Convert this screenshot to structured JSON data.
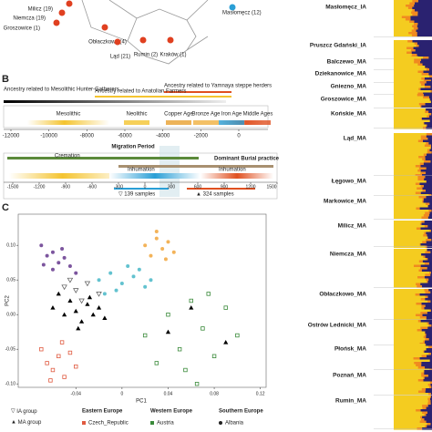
{
  "panel_a": {
    "sites": [
      {
        "label": "Milicz (19)"
      },
      {
        "label": "Niemcza (19)"
      },
      {
        "label": "Groszowice (1)"
      },
      {
        "label": "Obłaczkowo (4)"
      },
      {
        "label": "Ląd (21)"
      },
      {
        "label": "Rumin (2)"
      },
      {
        "label": "Kraków (1)"
      },
      {
        "label": "Masłomęcz (12)"
      }
    ]
  },
  "panel_b": {
    "label": "B",
    "ancestry": [
      "Ancestry related to Mesolithic Hunter-Gatherers",
      "Ancestry related to Anatolian Farmers",
      "Ancestry related to Yamnaya steppe herders"
    ],
    "periods": [
      "Mesolithic",
      "Neolithic",
      "Copper Age",
      "Bronze Age",
      "Iron Age",
      "Middle Ages"
    ],
    "axis_ticks": [
      -12000,
      -10000,
      -8000,
      -6000,
      -4000,
      -2000,
      0
    ],
    "migration": "Migration Period",
    "dominant": "Dominant Burial practice",
    "burial": [
      "Cremation",
      "Inhumation",
      "Inhumation"
    ],
    "zoom_ticks": [
      -1500,
      -1200,
      -900,
      -600,
      -300,
      0,
      300,
      600,
      900,
      1200,
      1500
    ],
    "samples": [
      "▽ 139 samples",
      "▲ 324 samples"
    ]
  },
  "panel_c": {
    "label": "C",
    "type": "scatter",
    "xlabel": "PC1",
    "ylabel": "PC2",
    "xlim": [
      -0.09,
      0.125
    ],
    "ylim": [
      -0.105,
      0.145
    ],
    "xticks": [
      -0.04,
      0,
      0.04,
      0.08,
      0.12
    ],
    "yticks": [
      {
        "value": 0.1,
        "label": "0.10"
      },
      0.05,
      {
        "value": 0,
        "label": "0.00"
      },
      -0.05,
      {
        "value": -0.1,
        "label": "-0.10"
      }
    ],
    "series": [
      {
        "color": "#5b2a86",
        "marker": "circle",
        "x": [
          -0.07,
          -0.065,
          -0.06,
          -0.055,
          -0.05,
          -0.045,
          -0.06,
          -0.04,
          -0.052,
          -0.068
        ],
        "y": [
          0.1,
          0.085,
          0.09,
          0.075,
          0.082,
          0.07,
          0.065,
          0.06,
          0.095,
          0.072
        ]
      },
      {
        "color": "#3bb3c3",
        "marker": "circle",
        "x": [
          -0.02,
          -0.01,
          0,
          0.01,
          0.02,
          -0.005,
          0.015,
          0.005,
          -0.015,
          0.025
        ],
        "y": [
          0.05,
          0.06,
          0.045,
          0.055,
          0.04,
          0.035,
          0.065,
          0.07,
          0.03,
          0.05
        ]
      },
      {
        "color": "#f0a030",
        "marker": "circle",
        "x": [
          0.02,
          0.03,
          0.035,
          0.04,
          0.025,
          0.045,
          0.03,
          0.038
        ],
        "y": [
          0.1,
          0.11,
          0.095,
          0.105,
          0.085,
          0.09,
          0.12,
          0.08
        ]
      },
      {
        "color": "#e05a40",
        "marker": "square",
        "x": [
          -0.07,
          -0.065,
          -0.06,
          -0.055,
          -0.05,
          -0.045,
          -0.04,
          -0.062,
          -0.052
        ],
        "y": [
          -0.05,
          -0.07,
          -0.08,
          -0.06,
          -0.09,
          -0.055,
          -0.075,
          -0.095,
          -0.04
        ]
      },
      {
        "color": "#3a8a3a",
        "marker": "square",
        "x": [
          0.02,
          0.04,
          0.05,
          0.06,
          0.07,
          0.08,
          0.09,
          0.1,
          0.055,
          0.075,
          0.03,
          0.065
        ],
        "y": [
          -0.03,
          0,
          -0.05,
          0.02,
          -0.02,
          -0.06,
          0.01,
          -0.03,
          -0.08,
          0.03,
          -0.07,
          -0.1
        ]
      },
      {
        "color": "#555555",
        "marker": "open-triangle",
        "x": [
          -0.05,
          -0.04,
          -0.03,
          -0.02,
          -0.045,
          -0.035
        ],
        "y": [
          0.04,
          0.035,
          0.045,
          0.03,
          0.05,
          0.02
        ]
      },
      {
        "color": "#000000",
        "marker": "triangle",
        "x": [
          -0.06,
          -0.05,
          -0.045,
          -0.04,
          -0.035,
          -0.03,
          -0.025,
          -0.02,
          -0.055,
          -0.038,
          -0.028,
          -0.015,
          0.04,
          0.06,
          0.09
        ],
        "y": [
          0.01,
          0,
          0.02,
          0.005,
          -0.01,
          0.015,
          0,
          0.01,
          0.03,
          -0.02,
          0.025,
          -0.005,
          -0.025,
          0.01,
          -0.04
        ]
      }
    ],
    "legend": {
      "groups": [
        "IA group",
        "MA group"
      ],
      "regions": [
        "Eastern Europe",
        "Western Europe",
        "Southern Europe"
      ],
      "countries": [
        "Czech_Republic",
        "Austria",
        "Albania"
      ]
    }
  },
  "admixture": {
    "labels": [
      "Masłomęcz_IA",
      "Pruszcz Gdański_IA",
      "Balczewo_MA",
      "Dziekanowice_MA",
      "Gniezno_MA",
      "Groszowice_MA",
      "Końskie_MA",
      "Ląd_MA",
      "Łęgowo_MA",
      "Markowice_MA",
      "Milicz_MA",
      "Niemcza_MA",
      "Obłaczkowo_MA",
      "Ostrów Lednicki_MA",
      "Płońsk_MA",
      "Poznań_MA",
      "Rumin_MA"
    ]
  }
}
